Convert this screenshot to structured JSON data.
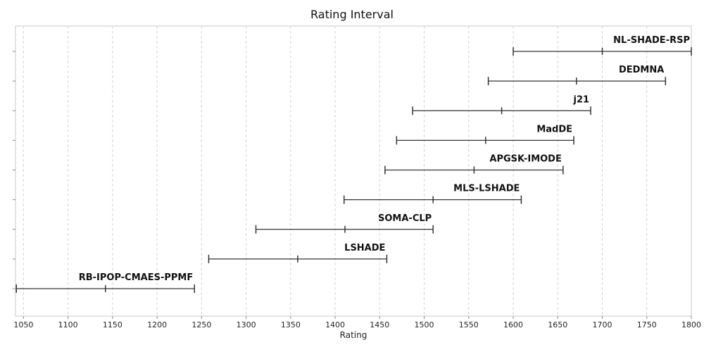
{
  "chart_data": {
    "type": "interval",
    "title": "Rating Interval",
    "xlabel": "Rating",
    "ylabel": "",
    "xlim": [
      1041,
      1800
    ],
    "xticks": [
      1050,
      1100,
      1150,
      1200,
      1250,
      1300,
      1350,
      1400,
      1450,
      1500,
      1550,
      1600,
      1650,
      1700,
      1750,
      1800
    ],
    "grid": "vertical-dashed",
    "series": [
      {
        "name": "NL-SHADE-RSP",
        "low": 1600,
        "mid": 1700,
        "high": 1800
      },
      {
        "name": "DEDMNA",
        "low": 1572,
        "mid": 1671,
        "high": 1771
      },
      {
        "name": "j21",
        "low": 1487,
        "mid": 1587,
        "high": 1687
      },
      {
        "name": "MadDE",
        "low": 1469,
        "mid": 1569,
        "high": 1668
      },
      {
        "name": "APGSK-IMODE",
        "low": 1456,
        "mid": 1556,
        "high": 1656
      },
      {
        "name": "MLS-LSHADE",
        "low": 1410,
        "mid": 1510,
        "high": 1609
      },
      {
        "name": "SOMA-CLP",
        "low": 1311,
        "mid": 1411,
        "high": 1510
      },
      {
        "name": "LSHADE",
        "low": 1258,
        "mid": 1358,
        "high": 1458
      },
      {
        "name": "RB-IPOP-CMAES-PPMF",
        "low": 1042,
        "mid": 1142,
        "high": 1242
      }
    ]
  }
}
